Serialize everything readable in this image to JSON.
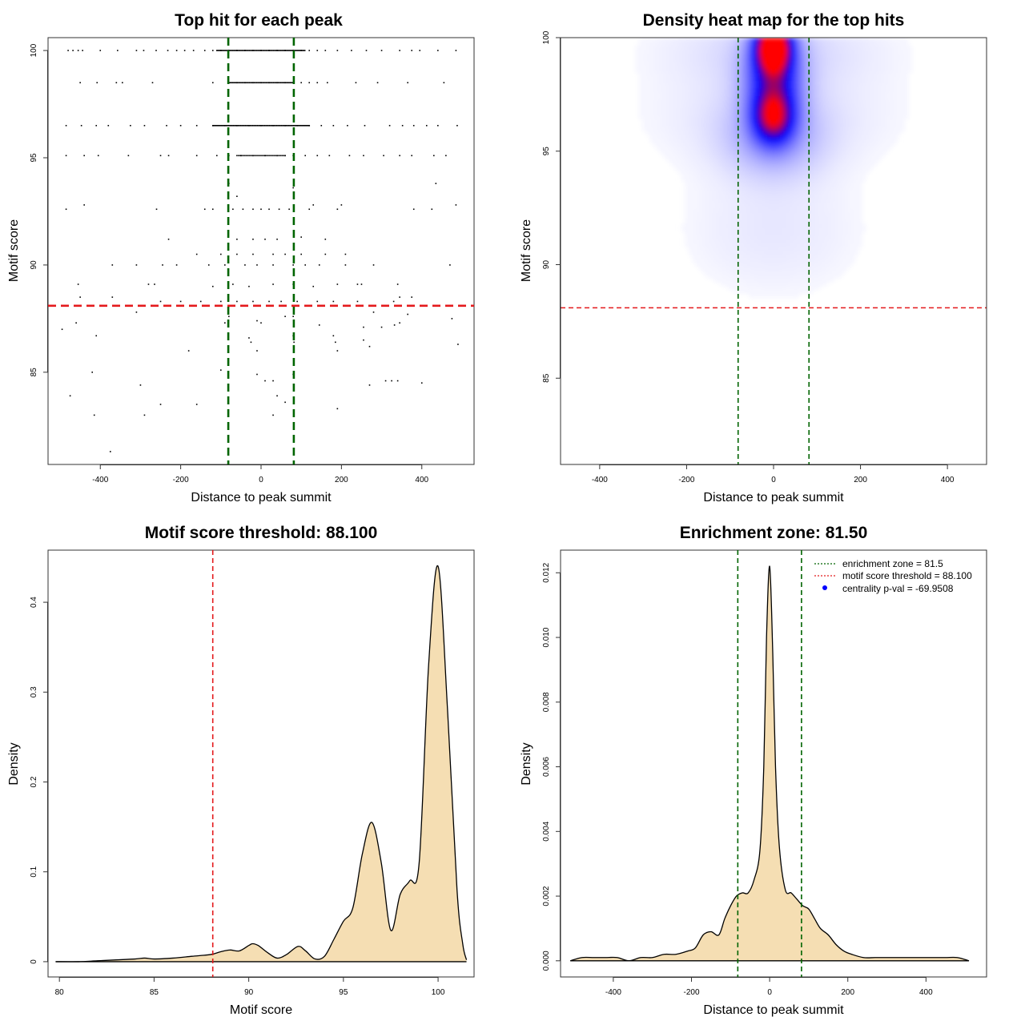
{
  "colors": {
    "threshold_line": "#e41a1c",
    "zone_line": "#006400",
    "density_fill": "#f5deb3",
    "heat_low": "#ffffff",
    "heat_mid": "#0000ff",
    "heat_high": "#ff0000",
    "point": "#000000",
    "legend_dot": "#0000ff"
  },
  "chart_data": [
    {
      "id": "scatter",
      "type": "scatter",
      "title": "Top hit for each peak",
      "xlabel": "Distance to peak summit",
      "ylabel": "Motif score",
      "xlim": [
        -530,
        530
      ],
      "ylim": [
        80.7,
        100.6
      ],
      "xticks": [
        -400,
        -200,
        0,
        200,
        400
      ],
      "yticks": [
        85,
        90,
        95,
        100
      ],
      "vlines": [
        -81.5,
        81.5
      ],
      "hline": 88.1,
      "score_levels": [
        100,
        98.5,
        96.5,
        95.1,
        92.6,
        91.2,
        90.5,
        90,
        89.1,
        88.5,
        87.7,
        87,
        86.5,
        86,
        85,
        84.5,
        83.9,
        83.5,
        83,
        81.3
      ],
      "points": [
        [
          -480,
          100
        ],
        [
          -468,
          100
        ],
        [
          -455,
          100
        ],
        [
          -444,
          100
        ],
        [
          -400,
          100
        ],
        [
          -357,
          100
        ],
        [
          -310,
          100
        ],
        [
          -292,
          100
        ],
        [
          -261,
          100
        ],
        [
          -232,
          100
        ],
        [
          -210,
          100
        ],
        [
          -190,
          100
        ],
        [
          -168,
          100
        ],
        [
          -140,
          100
        ],
        [
          -120,
          100
        ],
        [
          -100,
          100
        ],
        [
          -80,
          100
        ],
        [
          -60,
          100
        ],
        [
          -40,
          100
        ],
        [
          -20,
          100
        ],
        [
          0,
          100
        ],
        [
          20,
          100
        ],
        [
          40,
          100
        ],
        [
          60,
          100
        ],
        [
          80,
          100
        ],
        [
          100,
          100
        ],
        [
          120,
          100
        ],
        [
          140,
          100
        ],
        [
          160,
          100
        ],
        [
          190,
          100
        ],
        [
          225,
          100
        ],
        [
          262,
          100
        ],
        [
          300,
          100
        ],
        [
          345,
          100
        ],
        [
          375,
          100
        ],
        [
          395,
          100
        ],
        [
          440,
          100
        ],
        [
          485,
          100
        ],
        [
          -450,
          98.5
        ],
        [
          -408,
          98.5
        ],
        [
          -360,
          98.5
        ],
        [
          -345,
          98.5
        ],
        [
          -270,
          98.5
        ],
        [
          -120,
          98.5
        ],
        [
          -80,
          98.5
        ],
        [
          -60,
          98.5
        ],
        [
          -40,
          98.5
        ],
        [
          -20,
          98.5
        ],
        [
          0,
          98.5
        ],
        [
          20,
          98.5
        ],
        [
          40,
          98.5
        ],
        [
          60,
          98.5
        ],
        [
          80,
          98.5
        ],
        [
          100,
          98.5
        ],
        [
          120,
          98.5
        ],
        [
          140,
          98.5
        ],
        [
          165,
          98.5
        ],
        [
          236,
          98.5
        ],
        [
          290,
          98.5
        ],
        [
          365,
          98.5
        ],
        [
          455,
          98.5
        ],
        [
          -485,
          96.5
        ],
        [
          -447,
          96.5
        ],
        [
          -410,
          96.5
        ],
        [
          -380,
          96.5
        ],
        [
          -325,
          96.5
        ],
        [
          -290,
          96.5
        ],
        [
          -235,
          96.5
        ],
        [
          -200,
          96.5
        ],
        [
          -160,
          96.5
        ],
        [
          -120,
          96.5
        ],
        [
          -90,
          96.5
        ],
        [
          -60,
          96.5
        ],
        [
          -30,
          96.5
        ],
        [
          0,
          96.5
        ],
        [
          30,
          96.5
        ],
        [
          60,
          96.5
        ],
        [
          90,
          96.5
        ],
        [
          120,
          96.5
        ],
        [
          150,
          96.5
        ],
        [
          180,
          96.5
        ],
        [
          215,
          96.5
        ],
        [
          258,
          96.5
        ],
        [
          320,
          96.5
        ],
        [
          352,
          96.5
        ],
        [
          380,
          96.5
        ],
        [
          412,
          96.5
        ],
        [
          440,
          96.5
        ],
        [
          488,
          96.5
        ],
        [
          -485,
          95.1
        ],
        [
          -440,
          95.1
        ],
        [
          -405,
          95.1
        ],
        [
          -330,
          95.1
        ],
        [
          -250,
          95.1
        ],
        [
          -230,
          95.1
        ],
        [
          -160,
          95.1
        ],
        [
          -110,
          95.1
        ],
        [
          -80,
          95.1
        ],
        [
          -50,
          95.1
        ],
        [
          -20,
          95.1
        ],
        [
          10,
          95.1
        ],
        [
          40,
          95.1
        ],
        [
          60,
          95.1
        ],
        [
          80,
          95.1
        ],
        [
          110,
          95.1
        ],
        [
          140,
          95.1
        ],
        [
          170,
          95.1
        ],
        [
          220,
          95.1
        ],
        [
          255,
          95.1
        ],
        [
          305,
          95.1
        ],
        [
          345,
          95.1
        ],
        [
          375,
          95.1
        ],
        [
          430,
          95.1
        ],
        [
          460,
          95.1
        ],
        [
          -80,
          93.8
        ],
        [
          -60,
          93.2
        ],
        [
          80,
          93.6
        ],
        [
          435,
          93.8
        ],
        [
          -485,
          92.6
        ],
        [
          -440,
          92.8
        ],
        [
          -260,
          92.6
        ],
        [
          -140,
          92.6
        ],
        [
          -120,
          92.6
        ],
        [
          -70,
          92.6
        ],
        [
          -45,
          92.6
        ],
        [
          -20,
          92.6
        ],
        [
          0,
          92.6
        ],
        [
          20,
          92.6
        ],
        [
          45,
          92.6
        ],
        [
          70,
          92.6
        ],
        [
          120,
          92.6
        ],
        [
          130,
          92.8
        ],
        [
          190,
          92.6
        ],
        [
          200,
          92.8
        ],
        [
          380,
          92.6
        ],
        [
          425,
          92.6
        ],
        [
          485,
          92.8
        ],
        [
          -230,
          91.2
        ],
        [
          -60,
          91.2
        ],
        [
          -20,
          91.2
        ],
        [
          10,
          91.2
        ],
        [
          40,
          91.2
        ],
        [
          100,
          91.3
        ],
        [
          160,
          91.2
        ],
        [
          -160,
          90.5
        ],
        [
          -100,
          90.5
        ],
        [
          -60,
          90.5
        ],
        [
          -20,
          90.5
        ],
        [
          30,
          90.5
        ],
        [
          60,
          90.5
        ],
        [
          100,
          90.5
        ],
        [
          160,
          90.5
        ],
        [
          210,
          90.5
        ],
        [
          -370,
          90
        ],
        [
          -310,
          90
        ],
        [
          -245,
          90
        ],
        [
          -210,
          90
        ],
        [
          -130,
          90
        ],
        [
          -90,
          90
        ],
        [
          -40,
          90
        ],
        [
          -10,
          90
        ],
        [
          30,
          90
        ],
        [
          80,
          90
        ],
        [
          110,
          90
        ],
        [
          145,
          90
        ],
        [
          210,
          90
        ],
        [
          280,
          90
        ],
        [
          470,
          90
        ],
        [
          -455,
          89.1
        ],
        [
          -280,
          89.1
        ],
        [
          -265,
          89.1
        ],
        [
          -120,
          89
        ],
        [
          -70,
          89.1
        ],
        [
          -30,
          89
        ],
        [
          30,
          89.1
        ],
        [
          80,
          89.1
        ],
        [
          130,
          89
        ],
        [
          190,
          89.1
        ],
        [
          240,
          89.1
        ],
        [
          250,
          89.1
        ],
        [
          340,
          89.1
        ],
        [
          -450,
          88.5
        ],
        [
          -370,
          88.5
        ],
        [
          -250,
          88.3
        ],
        [
          -200,
          88.3
        ],
        [
          -150,
          88.3
        ],
        [
          -100,
          88.3
        ],
        [
          -60,
          88.3
        ],
        [
          -20,
          88.3
        ],
        [
          20,
          88.3
        ],
        [
          50,
          88.3
        ],
        [
          90,
          88.3
        ],
        [
          140,
          88.3
        ],
        [
          180,
          88.3
        ],
        [
          240,
          88.3
        ],
        [
          330,
          88.3
        ],
        [
          345,
          88.5
        ],
        [
          375,
          88.5
        ],
        [
          -310,
          87.8
        ],
        [
          -80,
          87.6
        ],
        [
          -10,
          87.4
        ],
        [
          60,
          87.6
        ],
        [
          80,
          87.6
        ],
        [
          280,
          87.8
        ],
        [
          365,
          87.7
        ],
        [
          475,
          87.5
        ],
        [
          -460,
          87.3
        ],
        [
          -90,
          87.3
        ],
        [
          0,
          87.3
        ],
        [
          -495,
          87.0
        ],
        [
          145,
          87.2
        ],
        [
          255,
          87.1
        ],
        [
          300,
          87.1
        ],
        [
          332,
          87.2
        ],
        [
          345,
          87.3
        ],
        [
          -410,
          86.7
        ],
        [
          -30,
          86.6
        ],
        [
          -25,
          86.4
        ],
        [
          80,
          86.7
        ],
        [
          82,
          86.4
        ],
        [
          180,
          86.7
        ],
        [
          185,
          86.4
        ],
        [
          255,
          86.5
        ],
        [
          490,
          86.3
        ],
        [
          -180,
          86.0
        ],
        [
          -10,
          86.0
        ],
        [
          190,
          86.0
        ],
        [
          270,
          86.2
        ],
        [
          -420,
          85.0
        ],
        [
          -100,
          85.1
        ],
        [
          -10,
          84.9
        ],
        [
          10,
          84.6
        ],
        [
          30,
          84.6
        ],
        [
          80,
          84.9
        ],
        [
          310,
          84.6
        ],
        [
          325,
          84.6
        ],
        [
          340,
          84.6
        ],
        [
          400,
          84.5
        ],
        [
          -475,
          83.9
        ],
        [
          -300,
          84.4
        ],
        [
          -160,
          83.5
        ],
        [
          -250,
          83.5
        ],
        [
          40,
          83.9
        ],
        [
          60,
          83.6
        ],
        [
          270,
          84.4
        ],
        [
          190,
          83.3
        ],
        [
          -415,
          83.0
        ],
        [
          -290,
          83.0
        ],
        [
          30,
          83.0
        ],
        [
          -375,
          81.3
        ]
      ]
    },
    {
      "id": "heatmap",
      "type": "heatmap",
      "title": "Density heat map for the top hits",
      "xlabel": "Distance to peak summit",
      "ylabel": "Motif score",
      "xlim": [
        -490,
        490
      ],
      "ylim": [
        81.2,
        100
      ],
      "xticks": [
        -400,
        -200,
        0,
        200,
        400
      ],
      "yticks": [
        85,
        90,
        95,
        100
      ],
      "vlines": [
        -81.5,
        81.5
      ],
      "hline": 88.1,
      "hotspots": [
        {
          "x": 0,
          "y": 99.7,
          "sx": 28,
          "sy": 0.8,
          "w": 1.0
        },
        {
          "x": 0,
          "y": 98.2,
          "sx": 45,
          "sy": 1.4,
          "w": 0.55
        },
        {
          "x": 0,
          "y": 96.5,
          "sx": 32,
          "sy": 0.8,
          "w": 0.6
        },
        {
          "x": 0,
          "y": 95.5,
          "sx": 80,
          "sy": 1.2,
          "w": 0.18
        },
        {
          "x": 0,
          "y": 99.5,
          "sx": 170,
          "sy": 1.2,
          "w": 0.1
        },
        {
          "x": 0,
          "y": 96.5,
          "sx": 180,
          "sy": 1.5,
          "w": 0.08
        },
        {
          "x": 0,
          "y": 91.5,
          "sx": 140,
          "sy": 2.0,
          "w": 0.06
        }
      ]
    },
    {
      "id": "score-density",
      "type": "area",
      "title": "Motif score threshold: 88.100",
      "xlabel": "Motif score",
      "ylabel": "Density",
      "xlim": [
        79.4,
        101.9
      ],
      "ylim": [
        -0.017,
        0.458
      ],
      "xticks": [
        80,
        85,
        90,
        95,
        100
      ],
      "yticks": [
        0.0,
        0.1,
        0.2,
        0.3,
        0.4
      ],
      "vline": 88.1,
      "x": [
        79.8,
        81,
        82,
        83,
        84,
        84.5,
        85,
        86,
        87,
        88,
        88.5,
        89,
        89.5,
        90,
        90.2,
        90.5,
        91,
        91.5,
        92,
        92.6,
        93,
        93.5,
        94,
        94.5,
        95,
        95.5,
        96,
        96.5,
        97,
        97.5,
        98,
        98.5,
        99,
        99.5,
        100,
        100.5,
        101,
        101.3,
        101.5
      ],
      "y": [
        0.0,
        0.0,
        0.001,
        0.002,
        0.003,
        0.004,
        0.003,
        0.004,
        0.006,
        0.008,
        0.011,
        0.013,
        0.012,
        0.018,
        0.02,
        0.018,
        0.01,
        0.004,
        0.008,
        0.017,
        0.012,
        0.003,
        0.006,
        0.025,
        0.045,
        0.06,
        0.12,
        0.155,
        0.11,
        0.035,
        0.075,
        0.09,
        0.11,
        0.33,
        0.44,
        0.28,
        0.08,
        0.02,
        0.002
      ]
    },
    {
      "id": "distance-density",
      "type": "area",
      "title": "Enrichment zone: 81.50",
      "xlabel": "Distance to peak summit",
      "ylabel": "Density",
      "xlim": [
        -535,
        555
      ],
      "ylim": [
        -0.0005,
        0.0127
      ],
      "xticks": [
        -400,
        -200,
        0,
        200,
        400
      ],
      "yticks": [
        "0.000",
        "0.002",
        "0.004",
        "0.006",
        "0.008",
        "0.010",
        "0.012"
      ],
      "vlines": [
        -81.5,
        81.5
      ],
      "x": [
        -510,
        -480,
        -450,
        -420,
        -390,
        -360,
        -330,
        -300,
        -270,
        -240,
        -210,
        -190,
        -170,
        -150,
        -130,
        -115,
        -100,
        -85,
        -70,
        -55,
        -40,
        -25,
        -15,
        -8,
        0,
        8,
        15,
        25,
        40,
        55,
        70,
        85,
        100,
        115,
        130,
        150,
        170,
        190,
        210,
        240,
        270,
        300,
        330,
        360,
        390,
        420,
        450,
        480,
        510
      ],
      "y": [
        0.0,
        0.0001,
        0.0001,
        0.0001,
        0.0001,
        0.0,
        0.0001,
        0.0001,
        0.0002,
        0.0002,
        0.0003,
        0.0004,
        0.0008,
        0.0009,
        0.0008,
        0.0013,
        0.0017,
        0.002,
        0.0021,
        0.0021,
        0.0025,
        0.0034,
        0.006,
        0.01,
        0.0122,
        0.0095,
        0.006,
        0.0035,
        0.0022,
        0.0021,
        0.0019,
        0.0017,
        0.0016,
        0.0013,
        0.001,
        0.0008,
        0.0005,
        0.0003,
        0.0002,
        0.0001,
        0.0001,
        0.0001,
        0.0001,
        0.0001,
        0.0001,
        0.0001,
        0.0001,
        0.0001,
        0.0
      ],
      "legend": [
        {
          "label": "enrichment zone = 81.5",
          "style": "dotted-green"
        },
        {
          "label": "motif score threshold = 88.100",
          "style": "dotted-red"
        },
        {
          "label": "centrality p-val = -69.9508",
          "style": "blue-dot"
        }
      ]
    }
  ]
}
